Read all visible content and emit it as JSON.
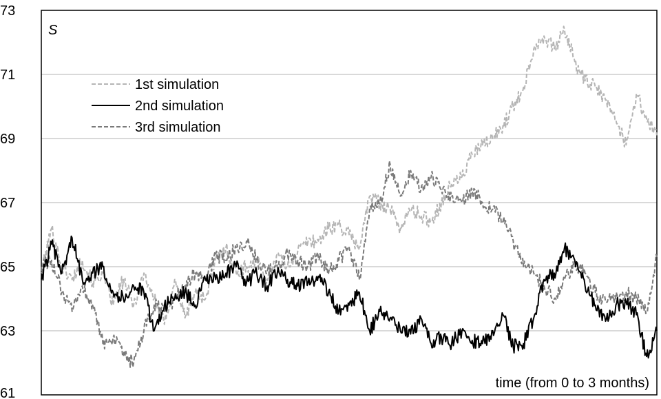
{
  "chart_data": {
    "type": "line",
    "title": "",
    "ylabel": "S",
    "xlabel": "time (from 0 to 3 months)",
    "ylim": [
      61,
      73
    ],
    "xlim": [
      0,
      3
    ],
    "yticks": [
      "61",
      "63",
      "65",
      "67",
      "69",
      "71",
      "73"
    ],
    "grid": "horizontal",
    "legend_position": "upper-left",
    "series": [
      {
        "name": "1st simulation",
        "style": "dashed",
        "color": "#b5b5b5",
        "x": [
          0,
          0.05,
          0.1,
          0.15,
          0.2,
          0.25,
          0.3,
          0.35,
          0.4,
          0.45,
          0.5,
          0.55,
          0.6,
          0.65,
          0.7,
          0.75,
          0.8,
          0.85,
          0.9,
          0.95,
          1.0,
          1.05,
          1.1,
          1.15,
          1.2,
          1.25,
          1.3,
          1.35,
          1.4,
          1.45,
          1.5,
          1.55,
          1.6,
          1.65,
          1.7,
          1.75,
          1.8,
          1.85,
          1.9,
          1.95,
          2.0,
          2.05,
          2.1,
          2.15,
          2.2,
          2.25,
          2.3,
          2.35,
          2.4,
          2.45,
          2.5,
          2.55,
          2.6,
          2.65,
          2.7,
          2.75,
          2.8,
          2.85,
          2.9,
          2.95,
          3.0
        ],
        "y": [
          64.8,
          66.2,
          65.0,
          64.6,
          65.2,
          64.5,
          64.8,
          63.8,
          64.6,
          63.8,
          64.8,
          64.0,
          63.2,
          64.6,
          63.4,
          64.2,
          64.0,
          65.2,
          65.6,
          64.8,
          65.0,
          65.2,
          64.6,
          65.4,
          65.0,
          65.5,
          65.8,
          65.8,
          66.2,
          66.3,
          66.0,
          65.6,
          67.2,
          67.0,
          66.8,
          66.2,
          66.8,
          66.6,
          66.4,
          67.0,
          67.6,
          67.8,
          68.5,
          68.8,
          69.0,
          69.4,
          70.0,
          70.6,
          71.8,
          72.2,
          71.8,
          72.4,
          71.4,
          70.8,
          70.6,
          70.2,
          69.6,
          68.8,
          70.4,
          69.6,
          69.1
        ]
      },
      {
        "name": "2nd simulation",
        "style": "solid",
        "color": "#000000",
        "x": [
          0,
          0.05,
          0.1,
          0.15,
          0.2,
          0.25,
          0.3,
          0.35,
          0.4,
          0.45,
          0.5,
          0.55,
          0.6,
          0.65,
          0.7,
          0.75,
          0.8,
          0.85,
          0.9,
          0.95,
          1.0,
          1.05,
          1.1,
          1.15,
          1.2,
          1.25,
          1.3,
          1.35,
          1.4,
          1.45,
          1.5,
          1.55,
          1.6,
          1.65,
          1.7,
          1.75,
          1.8,
          1.85,
          1.9,
          1.95,
          2.0,
          2.05,
          2.1,
          2.15,
          2.2,
          2.25,
          2.3,
          2.35,
          2.4,
          2.45,
          2.5,
          2.55,
          2.6,
          2.65,
          2.7,
          2.75,
          2.8,
          2.85,
          2.9,
          2.95,
          3.0
        ],
        "y": [
          64.6,
          65.7,
          64.8,
          65.9,
          64.6,
          64.8,
          65.0,
          64.2,
          64.0,
          64.4,
          64.2,
          63.0,
          63.8,
          64.0,
          64.2,
          63.8,
          64.6,
          64.6,
          64.8,
          65.0,
          64.5,
          64.8,
          64.4,
          64.8,
          64.6,
          64.4,
          64.5,
          64.7,
          64.2,
          63.6,
          63.8,
          64.2,
          63.0,
          63.6,
          63.4,
          63.0,
          62.9,
          63.4,
          62.6,
          62.8,
          62.6,
          63.0,
          62.7,
          62.6,
          63.0,
          63.5,
          62.5,
          62.6,
          63.4,
          64.6,
          64.8,
          65.6,
          65.2,
          64.4,
          63.8,
          63.3,
          63.8,
          63.9,
          63.5,
          62.2,
          63.0
        ]
      },
      {
        "name": "3rd simulation",
        "style": "dashed",
        "color": "#7a7a7a",
        "x": [
          0,
          0.05,
          0.1,
          0.15,
          0.2,
          0.25,
          0.3,
          0.35,
          0.4,
          0.45,
          0.5,
          0.55,
          0.6,
          0.65,
          0.7,
          0.75,
          0.8,
          0.85,
          0.9,
          0.95,
          1.0,
          1.05,
          1.1,
          1.15,
          1.2,
          1.25,
          1.3,
          1.35,
          1.4,
          1.45,
          1.5,
          1.55,
          1.6,
          1.65,
          1.7,
          1.75,
          1.8,
          1.85,
          1.9,
          1.95,
          2.0,
          2.05,
          2.1,
          2.15,
          2.2,
          2.25,
          2.3,
          2.35,
          2.4,
          2.45,
          2.5,
          2.55,
          2.6,
          2.65,
          2.7,
          2.75,
          2.8,
          2.85,
          2.9,
          2.95,
          3.0
        ],
        "y": [
          65.0,
          65.2,
          64.2,
          63.6,
          64.4,
          63.8,
          62.6,
          62.8,
          62.2,
          62.0,
          63.0,
          63.8,
          63.6,
          64.0,
          64.4,
          64.8,
          64.6,
          65.4,
          65.2,
          65.6,
          65.8,
          65.2,
          64.8,
          65.0,
          65.4,
          65.2,
          65.0,
          65.3,
          64.8,
          65.2,
          65.6,
          64.6,
          66.8,
          67.0,
          68.2,
          67.2,
          68.0,
          67.4,
          67.8,
          67.4,
          67.2,
          67.0,
          67.4,
          67.0,
          66.8,
          66.4,
          65.8,
          65.0,
          64.8,
          64.4,
          64.0,
          64.6,
          65.0,
          64.8,
          64.2,
          63.9,
          64.0,
          64.2,
          64.0,
          63.6,
          65.3
        ]
      }
    ]
  }
}
